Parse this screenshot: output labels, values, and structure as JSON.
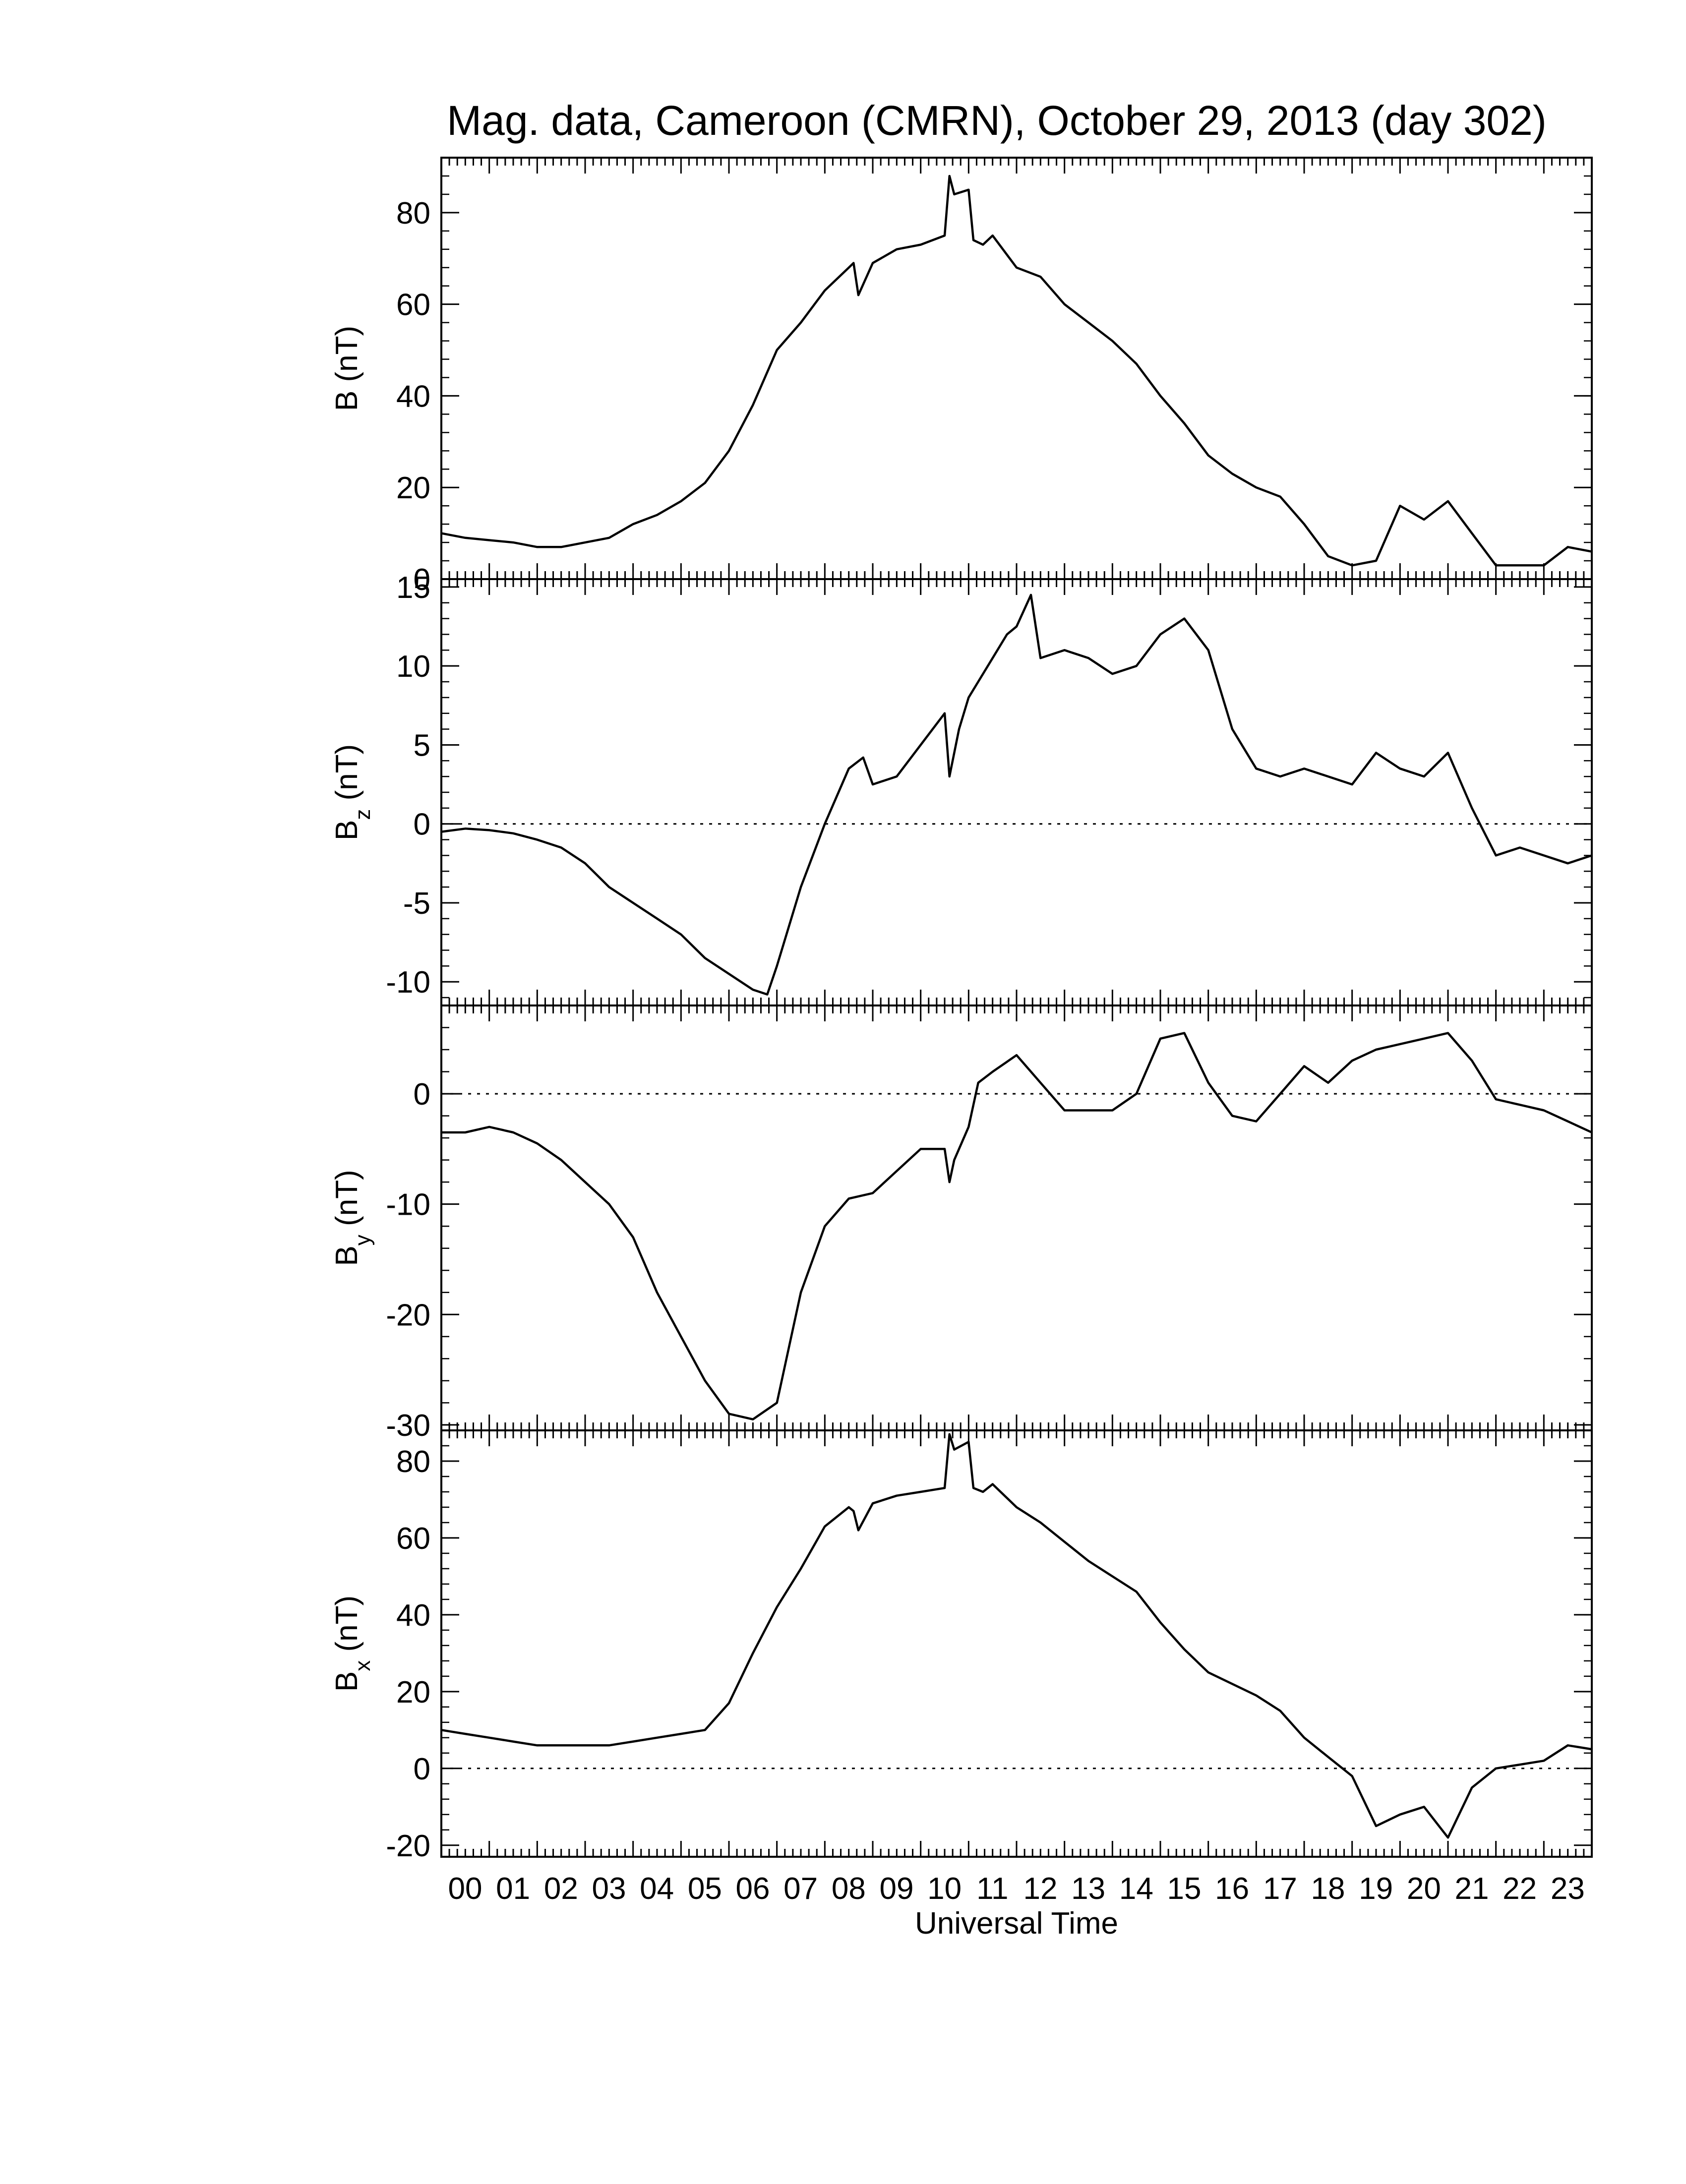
{
  "chart_data": {
    "type": "line",
    "title": "Mag. data, Cameroon (CMRN), October 29, 2013 (day 302)",
    "xlabel": "Universal Time",
    "x_ticks": [
      "00",
      "01",
      "02",
      "03",
      "04",
      "05",
      "06",
      "07",
      "08",
      "09",
      "10",
      "11",
      "12",
      "13",
      "14",
      "15",
      "16",
      "17",
      "18",
      "19",
      "20",
      "21",
      "22",
      "23"
    ],
    "xlim": [
      0,
      24
    ],
    "panels": [
      {
        "id": "B",
        "ylabel_main": "B",
        "ylabel_sub": "",
        "ylabel_unit": " (nT)",
        "ylim": [
          0,
          92
        ],
        "yticks": [
          0,
          20,
          40,
          60,
          80
        ],
        "zero_line": false,
        "series": [
          {
            "name": "",
            "x": [
              0.0,
              0.5,
              1.0,
              1.5,
              2.0,
              2.5,
              3.0,
              3.5,
              4.0,
              4.5,
              5.0,
              5.5,
              6.0,
              6.5,
              7.0,
              7.5,
              8.0,
              8.5,
              8.6,
              8.7,
              9.0,
              9.5,
              10.0,
              10.5,
              10.6,
              10.7,
              11.0,
              11.1,
              11.3,
              11.5,
              12.0,
              12.5,
              13.0,
              13.5,
              14.0,
              14.5,
              15.0,
              15.5,
              16.0,
              16.5,
              17.0,
              17.5,
              18.0,
              18.5,
              19.0,
              19.5,
              20.0,
              20.5,
              21.0,
              21.5,
              22.0,
              22.5,
              23.0,
              23.5,
              24.0
            ],
            "values": [
              10,
              9,
              8.5,
              8,
              7,
              7,
              8,
              9,
              12,
              14,
              17,
              21,
              28,
              38,
              50,
              56,
              63,
              68,
              69,
              62,
              69,
              72,
              73,
              75,
              88,
              84,
              85,
              74,
              73,
              75,
              68,
              66,
              60,
              56,
              52,
              47,
              40,
              34,
              27,
              23,
              20,
              18,
              12,
              5,
              3,
              4,
              16,
              13,
              17,
              10,
              3,
              3,
              3,
              7,
              6
            ]
          }
        ]
      },
      {
        "id": "Bz",
        "ylabel_main": "B",
        "ylabel_sub": "z",
        "ylabel_unit": " (nT)",
        "ylim": [
          -11.5,
          15.5
        ],
        "yticks": [
          -10,
          -5,
          0,
          5,
          10,
          15
        ],
        "ytick_labels": [
          "-10",
          "-5",
          "0",
          "5",
          "10",
          "15"
        ],
        "zero_line": true,
        "series": [
          {
            "name": "",
            "x": [
              0.0,
              0.5,
              1.0,
              1.5,
              2.0,
              2.5,
              3.0,
              3.5,
              4.0,
              4.5,
              5.0,
              5.5,
              6.0,
              6.5,
              6.8,
              7.0,
              7.5,
              8.0,
              8.5,
              8.8,
              9.0,
              9.5,
              10.0,
              10.5,
              10.6,
              10.8,
              11.0,
              11.2,
              11.5,
              11.8,
              12.0,
              12.3,
              12.5,
              13.0,
              13.5,
              14.0,
              14.5,
              15.0,
              15.5,
              16.0,
              16.5,
              17.0,
              17.5,
              18.0,
              18.5,
              19.0,
              19.5,
              20.0,
              20.5,
              21.0,
              21.5,
              22.0,
              22.5,
              23.0,
              23.5,
              24.0
            ],
            "values": [
              -0.5,
              -0.3,
              -0.4,
              -0.6,
              -1.0,
              -1.5,
              -2.5,
              -4,
              -5,
              -6,
              -7,
              -8.5,
              -9.5,
              -10.5,
              -10.8,
              -9,
              -4,
              0,
              3.5,
              4.2,
              2.5,
              3,
              5,
              7,
              3,
              6,
              8,
              9,
              10.5,
              12,
              12.5,
              14.5,
              10.5,
              11,
              10.5,
              9.5,
              10,
              12,
              13,
              11,
              6,
              3.5,
              3,
              3.5,
              3,
              2.5,
              4.5,
              3.5,
              3,
              4.5,
              1,
              -2,
              -1.5,
              -2,
              -2.5,
              -2
            ]
          }
        ]
      },
      {
        "id": "By",
        "ylabel_main": "B",
        "ylabel_sub": "y",
        "ylabel_unit": " (nT)",
        "ylim": [
          -30.5,
          8
        ],
        "yticks": [
          -30,
          -20,
          -10,
          0
        ],
        "ytick_labels": [
          "-30",
          "-20",
          "-10",
          "0"
        ],
        "zero_line": true,
        "series": [
          {
            "name": "",
            "x": [
              0.0,
              0.5,
              1.0,
              1.5,
              2.0,
              2.5,
              3.0,
              3.5,
              4.0,
              4.5,
              5.0,
              5.5,
              6.0,
              6.5,
              7.0,
              7.2,
              7.5,
              8.0,
              8.5,
              9.0,
              9.5,
              10.0,
              10.5,
              10.6,
              10.7,
              11.0,
              11.2,
              11.5,
              12.0,
              12.5,
              13.0,
              13.5,
              14.0,
              14.5,
              15.0,
              15.5,
              16.0,
              16.5,
              17.0,
              17.5,
              18.0,
              18.5,
              19.0,
              19.5,
              20.0,
              20.5,
              21.0,
              21.5,
              22.0,
              22.5,
              23.0,
              23.5,
              24.0
            ],
            "values": [
              -3.5,
              -3.5,
              -3,
              -3.5,
              -4.5,
              -6,
              -8,
              -10,
              -13,
              -18,
              -22,
              -26,
              -29,
              -29.5,
              -28,
              -24,
              -18,
              -12,
              -9.5,
              -9,
              -7,
              -5,
              -5,
              -8,
              -6,
              -3,
              1,
              2,
              3.5,
              1,
              -1.5,
              -1.5,
              -1.5,
              0,
              5,
              5.5,
              1,
              -2,
              -2.5,
              0,
              2.5,
              1,
              3,
              4,
              4.5,
              5,
              5.5,
              3,
              -0.5,
              -1,
              -1.5,
              -2.5,
              -3.5
            ]
          }
        ]
      },
      {
        "id": "Bx",
        "ylabel_main": "B",
        "ylabel_sub": "x",
        "ylabel_unit": " (nT)",
        "ylim": [
          -23,
          88
        ],
        "yticks": [
          -20,
          0,
          20,
          40,
          60,
          80
        ],
        "ytick_labels": [
          "-20",
          "0",
          "20",
          "40",
          "60",
          "80"
        ],
        "zero_line": true,
        "series": [
          {
            "name": "",
            "x": [
              0.0,
              0.5,
              1.0,
              1.5,
              2.0,
              2.5,
              3.0,
              3.5,
              4.0,
              4.5,
              5.0,
              5.5,
              6.0,
              6.5,
              7.0,
              7.5,
              8.0,
              8.5,
              8.6,
              8.7,
              9.0,
              9.5,
              10.0,
              10.5,
              10.6,
              10.7,
              11.0,
              11.1,
              11.3,
              11.5,
              12.0,
              12.5,
              13.0,
              13.5,
              14.0,
              14.5,
              15.0,
              15.5,
              16.0,
              16.5,
              17.0,
              17.5,
              18.0,
              18.5,
              19.0,
              19.5,
              20.0,
              20.5,
              21.0,
              21.5,
              22.0,
              22.5,
              23.0,
              23.5,
              24.0
            ],
            "values": [
              10,
              9,
              8,
              7,
              6,
              6,
              6,
              6,
              7,
              8,
              9,
              10,
              17,
              30,
              42,
              52,
              63,
              68,
              67,
              62,
              69,
              71,
              72,
              73,
              87,
              83,
              85,
              73,
              72,
              74,
              68,
              64,
              59,
              54,
              50,
              46,
              38,
              31,
              25,
              22,
              19,
              15,
              8,
              3,
              -2,
              -15,
              -12,
              -10,
              -18,
              -5,
              0,
              1,
              2,
              6,
              5
            ]
          }
        ]
      }
    ]
  }
}
